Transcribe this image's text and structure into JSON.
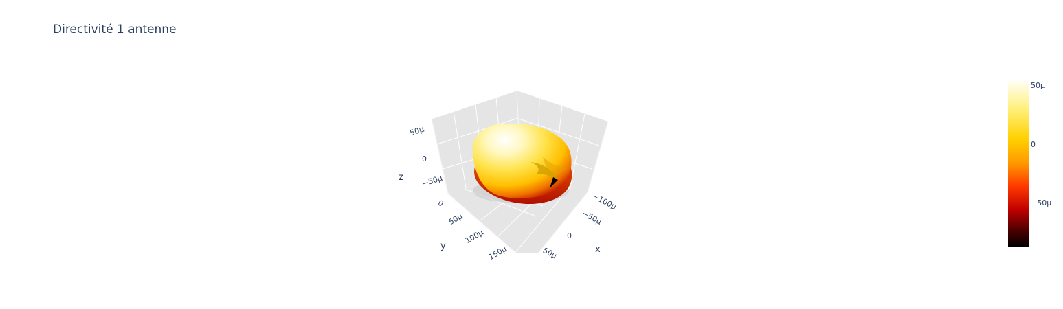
{
  "chart_data": {
    "type": "surface3d",
    "title": "Directivité 1 antenne",
    "axes": {
      "x": {
        "label": "x",
        "ticks": [
          "−100μ",
          "−50μ",
          "0",
          "50μ"
        ]
      },
      "y": {
        "label": "y",
        "ticks": [
          "0",
          "50μ",
          "100μ",
          "150μ"
        ]
      },
      "z": {
        "label": "z",
        "ticks": [
          "50μ",
          "0",
          "−50μ"
        ]
      }
    },
    "colorscale": "hot",
    "colorbar": {
      "ticks": [
        "50μ",
        "0",
        "−50μ"
      ],
      "range": [
        -9e-05,
        6e-05
      ]
    },
    "grid": true,
    "background": "#e5e5e5"
  }
}
